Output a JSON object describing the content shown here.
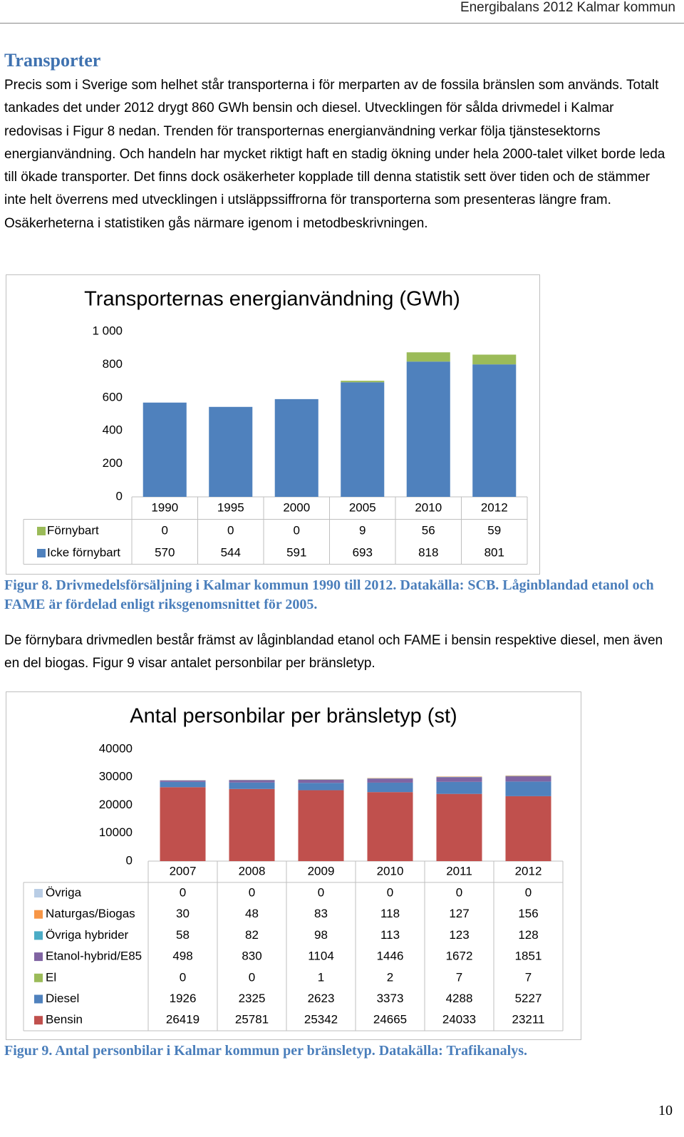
{
  "header": {
    "title": "Energibalans 2012 Kalmar kommun"
  },
  "heading": "Transporter",
  "paragraphs": [
    "Precis som i Sverige som helhet står transporterna i för merparten av de fossila bränslen som används. Totalt tankades det under 2012 drygt 860 GWh bensin och diesel. Utvecklingen för sålda drivmedel i Kalmar redovisas i Figur 8 nedan. Trenden för transporternas energianvändning verkar följa tjänstesektorns energianvändning. Och handeln har mycket riktigt haft en stadig ökning under hela 2000-talet vilket borde leda till ökade transporter. Det finns dock osäkerheter kopplade till denna statistik sett över tiden och de stämmer inte helt överrens med utvecklingen i utsläppssiffrorna för transporterna som presenteras längre fram. Osäkerheterna i statistiken gås närmare igenom i metodbeskrivningen.",
    "De förnybara drivmedlen består främst av låginblandad etanol och FAME i bensin respektive diesel, men även en del biogas. Figur 9 visar antalet personbilar per bränsletyp."
  ],
  "captions": [
    "Figur 8. Drivmedelsförsäljning i Kalmar kommun 1990 till 2012. Datakälla: SCB. Låginblandad etanol och FAME är fördelad enligt riksgenomsnittet för 2005.",
    "Figur 9. Antal personbilar i Kalmar kommun per bränsletyp. Datakälla: Trafikanalys."
  ],
  "page_number": "10",
  "chart_data": [
    {
      "type": "stacked-bar",
      "title": "Transporternas energianvändning  (GWh)",
      "categories": [
        "1990",
        "1995",
        "2000",
        "2005",
        "2010",
        "2012"
      ],
      "series": [
        {
          "name": "Förnybart",
          "color": "#9bbb59",
          "values": [
            0,
            0,
            0,
            9,
            56,
            59
          ]
        },
        {
          "name": "Icke förnybart",
          "color": "#4f81bd",
          "values": [
            570,
            544,
            591,
            693,
            818,
            801
          ]
        }
      ],
      "ylim": [
        0,
        1000
      ],
      "yticks": [
        0,
        200,
        400,
        600,
        800,
        {
          "value": 1000,
          "label": "1 000"
        }
      ]
    },
    {
      "type": "stacked-bar",
      "title": "Antal personbilar per bränsletyp (st)",
      "categories": [
        "2007",
        "2008",
        "2009",
        "2010",
        "2011",
        "2012"
      ],
      "series": [
        {
          "name": "Övriga",
          "color": "#b9cde5",
          "values": [
            0,
            0,
            0,
            0,
            0,
            0
          ]
        },
        {
          "name": "Naturgas/Biogas",
          "color": "#f79646",
          "values": [
            30,
            48,
            83,
            118,
            127,
            156
          ]
        },
        {
          "name": "Övriga hybrider",
          "color": "#4bacc6",
          "values": [
            58,
            82,
            98,
            113,
            123,
            128
          ]
        },
        {
          "name": "Etanol-hybrid/E85",
          "color": "#8064a2",
          "values": [
            498,
            830,
            1104,
            1446,
            1672,
            1851
          ]
        },
        {
          "name": "El",
          "color": "#9bbb59",
          "values": [
            0,
            0,
            1,
            2,
            7,
            7
          ]
        },
        {
          "name": "Diesel",
          "color": "#4f81bd",
          "values": [
            1926,
            2325,
            2623,
            3373,
            4288,
            5227
          ]
        },
        {
          "name": "Bensin",
          "color": "#c0504d",
          "values": [
            26419,
            25781,
            25342,
            24665,
            24033,
            23211
          ]
        }
      ],
      "ylim": [
        0,
        40000
      ],
      "yticks": [
        0,
        10000,
        20000,
        30000,
        40000
      ]
    }
  ]
}
